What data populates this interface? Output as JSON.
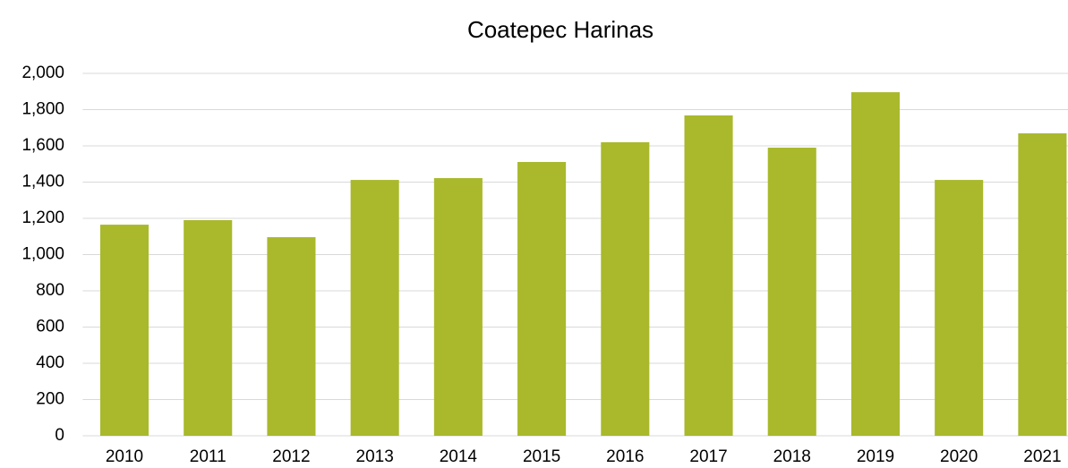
{
  "chart_data": {
    "type": "bar",
    "title": "Coatepec Harinas",
    "categories": [
      "2010",
      "2011",
      "2012",
      "2013",
      "2014",
      "2015",
      "2016",
      "2017",
      "2018",
      "2019",
      "2020",
      "2021"
    ],
    "values": [
      1165,
      1190,
      1096,
      1412,
      1422,
      1511,
      1620,
      1768,
      1590,
      1896,
      1412,
      1669
    ],
    "color": "#a9b92b",
    "ylim": [
      0,
      2000
    ],
    "yticks": [
      0,
      200,
      400,
      600,
      800,
      {
        "value": 1000,
        "label": "1,000"
      },
      {
        "value": 1200,
        "label": "1,200"
      },
      {
        "value": 1400,
        "label": "1,400"
      },
      {
        "value": 1600,
        "label": "1,600"
      },
      {
        "value": 1800,
        "label": "1,800"
      },
      {
        "value": 2000,
        "label": "2,000"
      }
    ],
    "grid": true
  }
}
